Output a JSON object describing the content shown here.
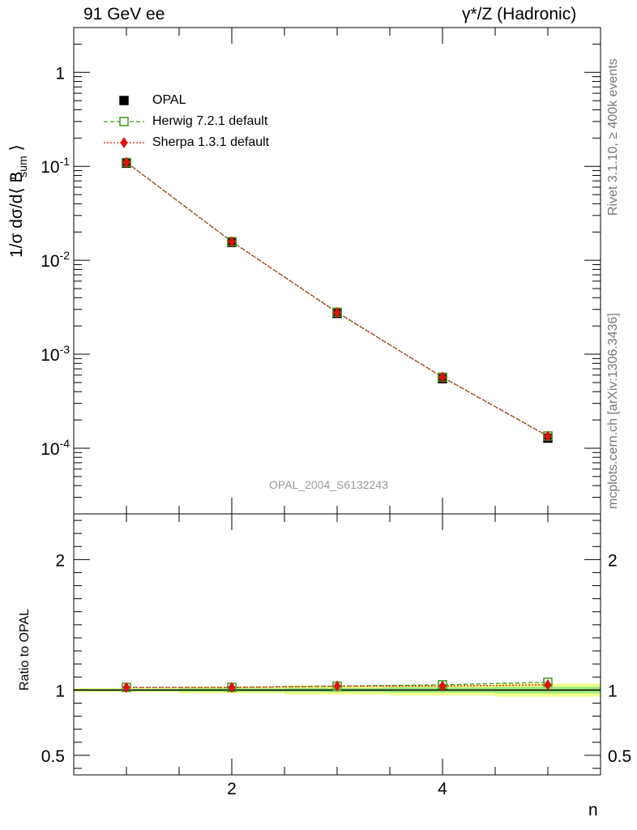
{
  "header": {
    "left_title": "91 GeV ee",
    "right_title": "γ*/Z (Hadronic)"
  },
  "side_labels": {
    "rivet": "Rivet 3.1.10, ≥ 400k events",
    "mcplots": "mcplots.cern.ch [arXiv:1306.3436]"
  },
  "watermark": "OPAL_2004_S6132243",
  "colors": {
    "data": "#000000",
    "herwig": "#3a9a1a",
    "sherpa": "#e01010",
    "band_yellow": "#f2ff8c",
    "band_green": "#9be87c"
  },
  "chart_data": [
    {
      "type": "scatter",
      "panel": "main",
      "ylabel": "1/σ dσ/d⟨ B^n_sum ⟩",
      "xlabel": "",
      "xlim": [
        0.5,
        5.5
      ],
      "ylim": [
        2e-05,
        3
      ],
      "yscale": "log",
      "x_ticks": [
        2,
        4
      ],
      "y_ticks": [
        0.0001,
        0.001,
        0.01,
        0.1,
        1
      ],
      "y_tick_labels": [
        "10^-4",
        "10^-3",
        "10^-2",
        "10^-1",
        "1"
      ],
      "legend_position": "top-left",
      "x": [
        1,
        2,
        3,
        4,
        5
      ],
      "series": [
        {
          "name": "OPAL",
          "values": [
            0.108,
            0.0155,
            0.00272,
            0.00055,
            0.000128
          ]
        },
        {
          "name": "Herwig 7.2.1 default",
          "values": [
            0.11,
            0.0158,
            0.0028,
            0.00057,
            0.000135
          ]
        },
        {
          "name": "Sherpa 1.3.1 default",
          "values": [
            0.11,
            0.0158,
            0.00278,
            0.00057,
            0.000134
          ]
        }
      ]
    },
    {
      "type": "scatter",
      "panel": "ratio",
      "ylabel": "Ratio to OPAL",
      "xlabel": "n",
      "xlim": [
        0.5,
        5.5
      ],
      "ylim": [
        0.35,
        2.35
      ],
      "x_ticks": [
        2,
        4
      ],
      "y_ticks": [
        0.5,
        1,
        2
      ],
      "y_tick_labels": [
        "0.5",
        "1",
        "2"
      ],
      "x": [
        1,
        2,
        3,
        4,
        5
      ],
      "series": [
        {
          "name": "Herwig 7.2.1 default",
          "values": [
            1.02,
            1.02,
            1.03,
            1.04,
            1.06
          ]
        },
        {
          "name": "Sherpa 1.3.1 default",
          "values": [
            1.02,
            1.02,
            1.03,
            1.03,
            1.04
          ]
        }
      ],
      "uncertainty_band": {
        "bins": [
          [
            0.5,
            1.5
          ],
          [
            1.5,
            2.5
          ],
          [
            2.5,
            3.5
          ],
          [
            3.5,
            4.5
          ],
          [
            4.5,
            5.5
          ]
        ],
        "yellow_halfwidth": [
          0.015,
          0.025,
          0.035,
          0.04,
          0.05
        ],
        "green_halfwidth": [
          0.008,
          0.012,
          0.016,
          0.02,
          0.025
        ]
      }
    }
  ]
}
